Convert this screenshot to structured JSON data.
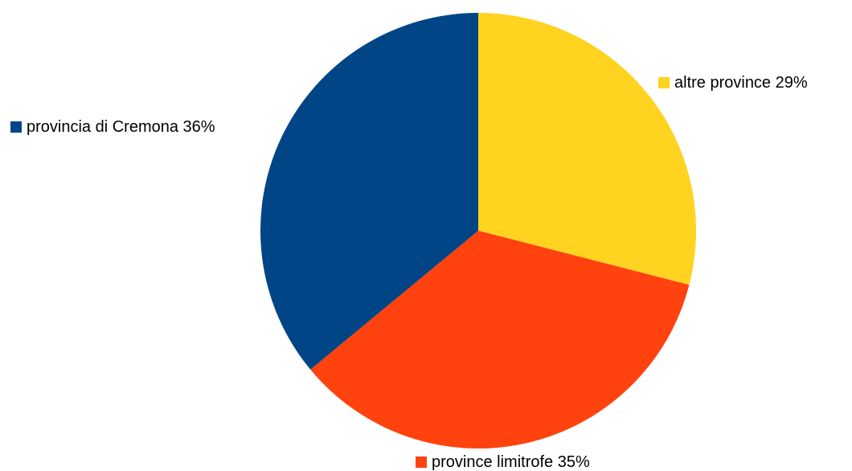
{
  "chart_data": {
    "type": "pie",
    "title": "",
    "slices": [
      {
        "label": "altre province",
        "percent_label": "29%",
        "value": 29,
        "color": "#FFD320"
      },
      {
        "label": "province limitrofe",
        "percent_label": "35%",
        "value": 35,
        "color": "#FF420E"
      },
      {
        "label": "provincia di Cremona",
        "percent_label": "36%",
        "value": 36,
        "color": "#004586"
      }
    ],
    "start_angle_deg": 0,
    "direction": "clockwise",
    "legend_placement": "labels beside slices"
  }
}
